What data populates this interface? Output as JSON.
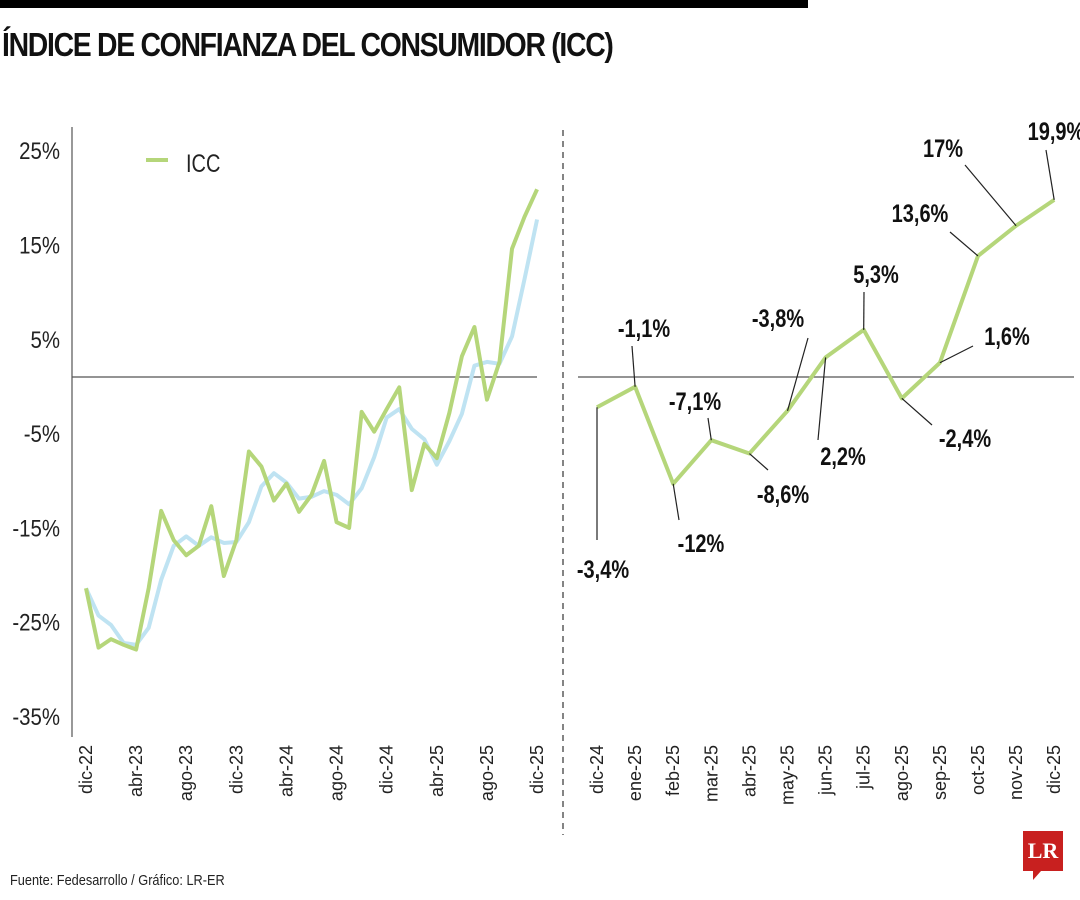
{
  "title": "ÍNDICE DE CONFIANZA DEL CONSUMIDOR (ICC)",
  "source": "Fuente: Fedesarrollo / Gráfico: LR-ER",
  "logo": "LR",
  "colors": {
    "icc": "#b5d67a",
    "secondary": "#bfe3f2",
    "axis": "#555555",
    "logo": "#c8201f"
  },
  "chart_data": [
    {
      "type": "line",
      "legend": {
        "label": "ICC",
        "placement": "top-left"
      },
      "ylim": [
        -35,
        25
      ],
      "yticks": [
        "25%",
        "15%",
        "5%",
        "-5%",
        "-15%",
        "-25%",
        "-35%"
      ],
      "ytick_values": [
        25,
        15,
        5,
        -5,
        -15,
        -25,
        -35
      ],
      "xtick_labels": [
        "dic-22",
        "abr-23",
        "ago-23",
        "dic-23",
        "abr-24",
        "ago-24",
        "dic-24",
        "abr-25",
        "ago-25",
        "dic-25"
      ],
      "x_range": [
        "dic-22",
        "dic-25"
      ],
      "series": [
        {
          "name": "ICC",
          "values": [
            -22.4,
            -28.7,
            -27.8,
            -28.4,
            -28.9,
            -22.4,
            -14.2,
            -17.3,
            -18.9,
            -17.9,
            -13.7,
            -21.1,
            -17.3,
            -7.9,
            -9.5,
            -13.1,
            -11.3,
            -14.3,
            -12.5,
            -8.9,
            -15.4,
            -16.0,
            -3.7,
            -5.8,
            -3.4,
            -1.1,
            -12,
            -7.1,
            -8.6,
            -3.8,
            2.2,
            5.3,
            -2.4,
            1.6,
            13.6,
            17,
            19.9
          ]
        },
        {
          "values": [
            -22.4,
            -25.3,
            -26.3,
            -28.2,
            -28.4,
            -26.6,
            -21.5,
            -17.9,
            -16.9,
            -17.9,
            -17.0,
            -17.6,
            -17.5,
            -15.4,
            -11.6,
            -10.2,
            -11.2,
            -12.9,
            -12.7,
            -12.1,
            -12.5,
            -13.5,
            -11.8,
            -8.5,
            -4.3,
            -3.4,
            -5.5,
            -6.6,
            -9.3,
            -6.8,
            -3.9,
            1.2,
            1.6,
            1.4,
            4.3,
            10.4,
            16.7
          ]
        }
      ]
    },
    {
      "type": "line",
      "categories": [
        "dic-24",
        "ene-25",
        "feb-25",
        "mar-25",
        "abr-25",
        "may-25",
        "jun-25",
        "jul-25",
        "ago-25",
        "sep-25",
        "oct-25",
        "nov-25",
        "dic-25"
      ],
      "values": [
        -3.4,
        -1.1,
        -12,
        -7.1,
        -8.6,
        -3.8,
        2.2,
        5.3,
        -2.4,
        1.6,
        13.6,
        17,
        19.9
      ],
      "data_labels": [
        "-3,4%",
        "-1,1%",
        "-12%",
        "-7,1%",
        "-8,6%",
        "-3,8%",
        "2,2%",
        "5,3%",
        "-2,4%",
        "1,6%",
        "13,6%",
        "17%",
        "19,9%"
      ]
    }
  ]
}
